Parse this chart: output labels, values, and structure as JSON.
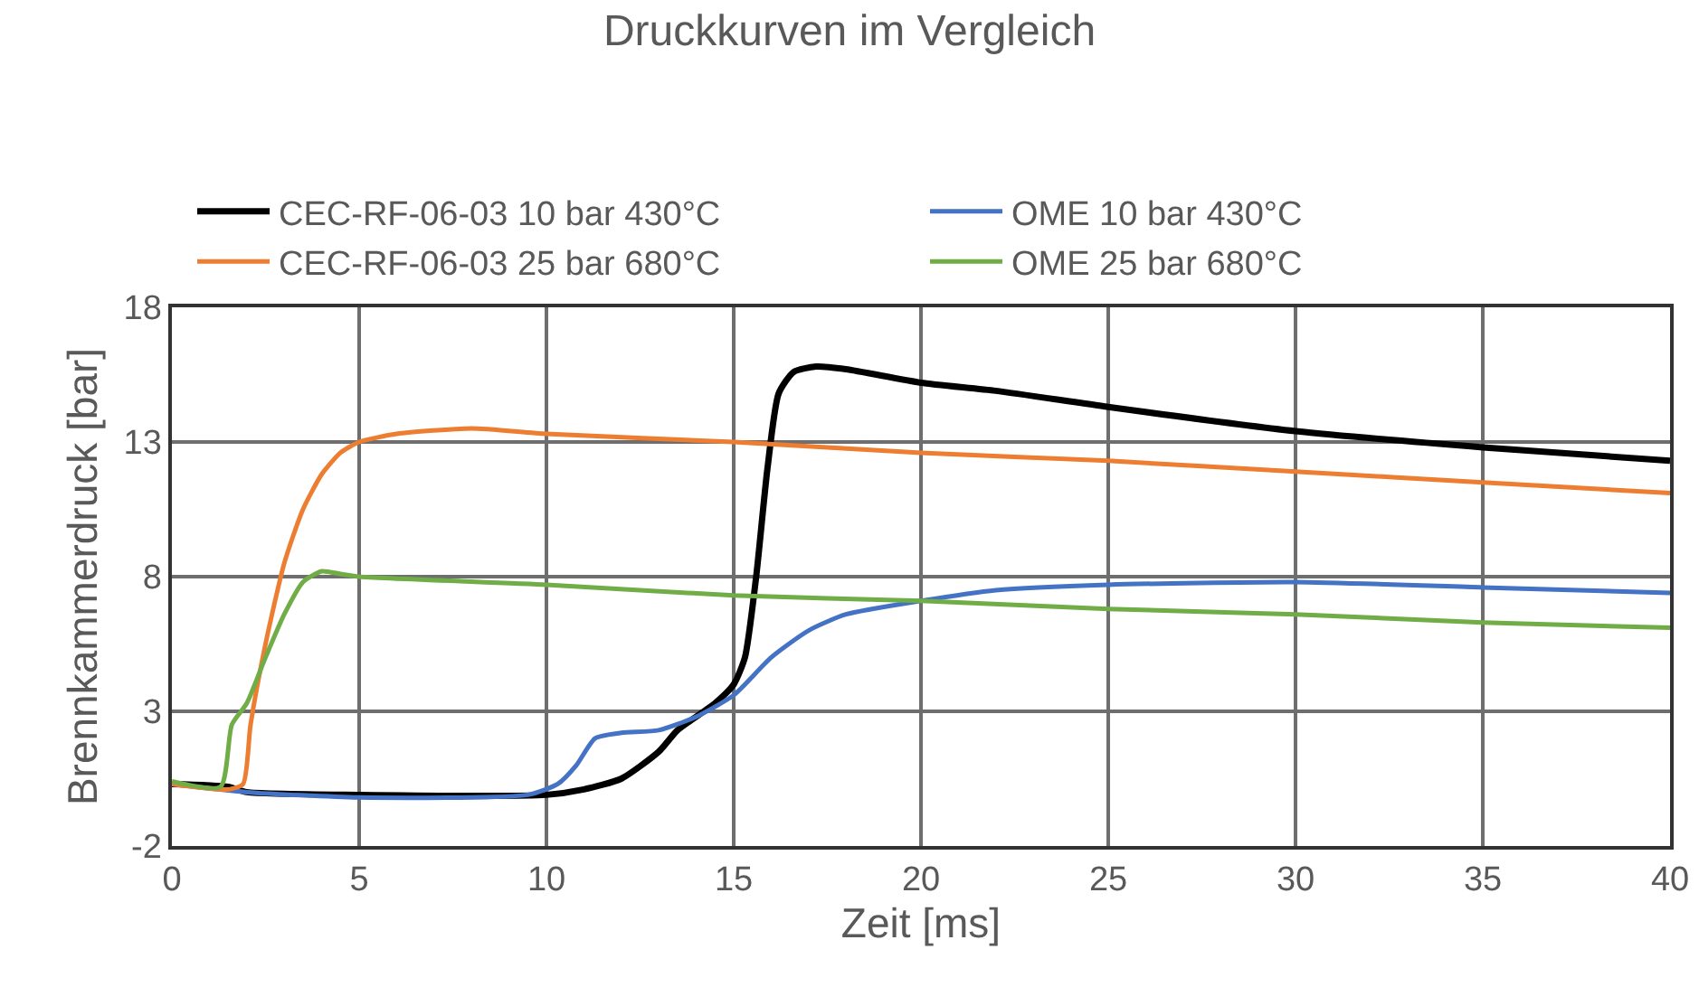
{
  "chart_data": {
    "type": "line",
    "title": "Druckkurven im Vergleich",
    "xlabel": "Zeit [ms]",
    "ylabel": "Brennkammerdruck [bar]",
    "xlim": [
      0,
      40
    ],
    "xticks": [
      0,
      5,
      10,
      15,
      20,
      25,
      30,
      35,
      40
    ],
    "ylim": [
      -2,
      18
    ],
    "yticks": [
      -2,
      3,
      8,
      13,
      18
    ],
    "grid": true,
    "legend": "top",
    "marker": "none",
    "line_style": "solid",
    "series": [
      {
        "name": "CEC-RF-06-03 10 bar 430°C",
        "color": "#000000",
        "x": [
          0,
          1.5,
          2,
          5,
          10,
          11,
          12,
          13,
          13.5,
          14.5,
          15,
          15.3,
          15.6,
          15.9,
          16.2,
          16.6,
          17.2,
          18,
          20,
          22,
          25,
          30,
          35,
          40
        ],
        "values": [
          0.3,
          0.2,
          0,
          -0.1,
          -0.1,
          0.1,
          0.5,
          1.5,
          2.3,
          3.3,
          4,
          5,
          8,
          12,
          14.8,
          15.6,
          15.8,
          15.7,
          15.2,
          14.9,
          14.3,
          13.4,
          12.8,
          12.3
        ]
      },
      {
        "name": "OME 10 bar 430°C",
        "color": "#4472c4",
        "x": [
          0,
          2,
          5,
          9.5,
          10.3,
          10.8,
          11.3,
          12,
          13,
          14,
          15,
          16,
          17,
          18,
          20,
          22,
          25,
          30,
          35,
          40
        ],
        "values": [
          0.3,
          0,
          -0.2,
          -0.1,
          0.3,
          1,
          2,
          2.2,
          2.3,
          2.8,
          3.6,
          5,
          6,
          6.6,
          7.1,
          7.5,
          7.7,
          7.8,
          7.6,
          7.4
        ]
      },
      {
        "name": "CEC-RF-06-03 25 bar 680°C",
        "color": "#ed7d31",
        "x": [
          0,
          1.5,
          1.9,
          2.1,
          2.5,
          3,
          3.5,
          4,
          4.5,
          5,
          6,
          8,
          10,
          15,
          20,
          25,
          30,
          35,
          40
        ],
        "values": [
          0.3,
          0.1,
          0.3,
          2.5,
          5.5,
          8.5,
          10.5,
          11.8,
          12.6,
          13,
          13.3,
          13.5,
          13.3,
          13,
          12.6,
          12.3,
          11.9,
          11.5,
          11.1
        ]
      },
      {
        "name": "OME 25 bar 680°C",
        "color": "#70ad47",
        "x": [
          0,
          1.3,
          1.6,
          2,
          2.5,
          3,
          3.5,
          4,
          4.5,
          5,
          10,
          15,
          20,
          25,
          30,
          35,
          40
        ],
        "values": [
          0.4,
          0.2,
          2.5,
          3.3,
          5,
          6.6,
          7.8,
          8.2,
          8.1,
          8,
          7.7,
          7.3,
          7.1,
          6.8,
          6.6,
          6.3,
          6.1
        ]
      }
    ]
  }
}
